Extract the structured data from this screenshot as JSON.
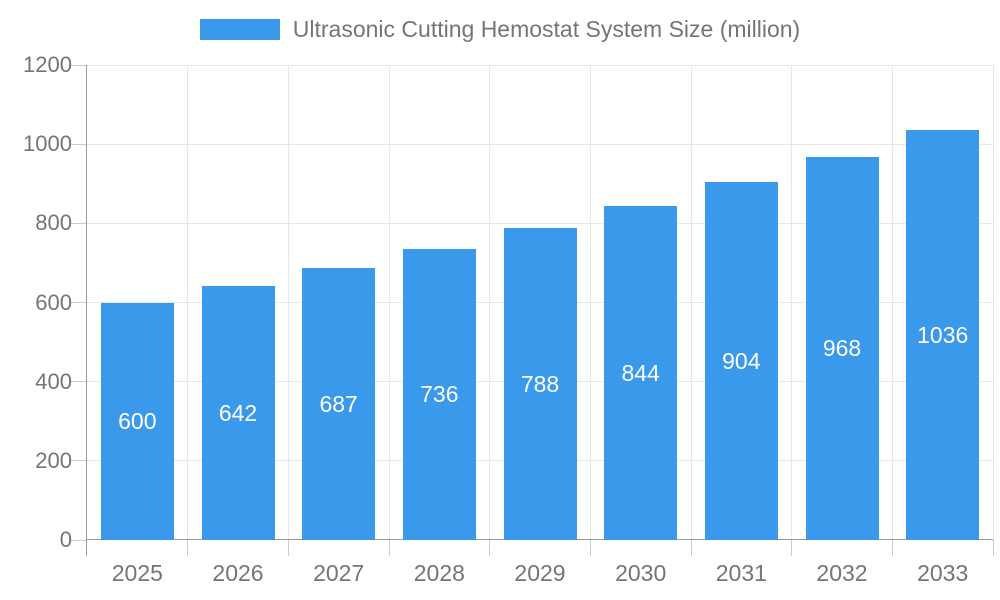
{
  "legend": {
    "label": "Ultrasonic Cutting Hemostat System Size (million)"
  },
  "chart_data": {
    "type": "bar",
    "title": "Ultrasonic Cutting Hemostat System Size (million)",
    "categories": [
      "2025",
      "2026",
      "2027",
      "2028",
      "2029",
      "2030",
      "2031",
      "2032",
      "2033"
    ],
    "values": [
      600,
      642,
      687,
      736,
      788,
      844,
      904,
      968,
      1036
    ],
    "xlabel": "",
    "ylabel": "",
    "ylim": [
      0,
      1200
    ],
    "yticks": [
      0,
      200,
      400,
      600,
      800,
      1000,
      1200
    ],
    "grid": true,
    "legend_position": "top-center",
    "bar_color": "#3B99EC",
    "value_label_color": "#ffffff",
    "axis_text_color": "#757575",
    "axis_line_color": "#999999",
    "gridline_color": "#e8e8e8",
    "tick_color": "#cccccc",
    "background": "#ffffff"
  }
}
